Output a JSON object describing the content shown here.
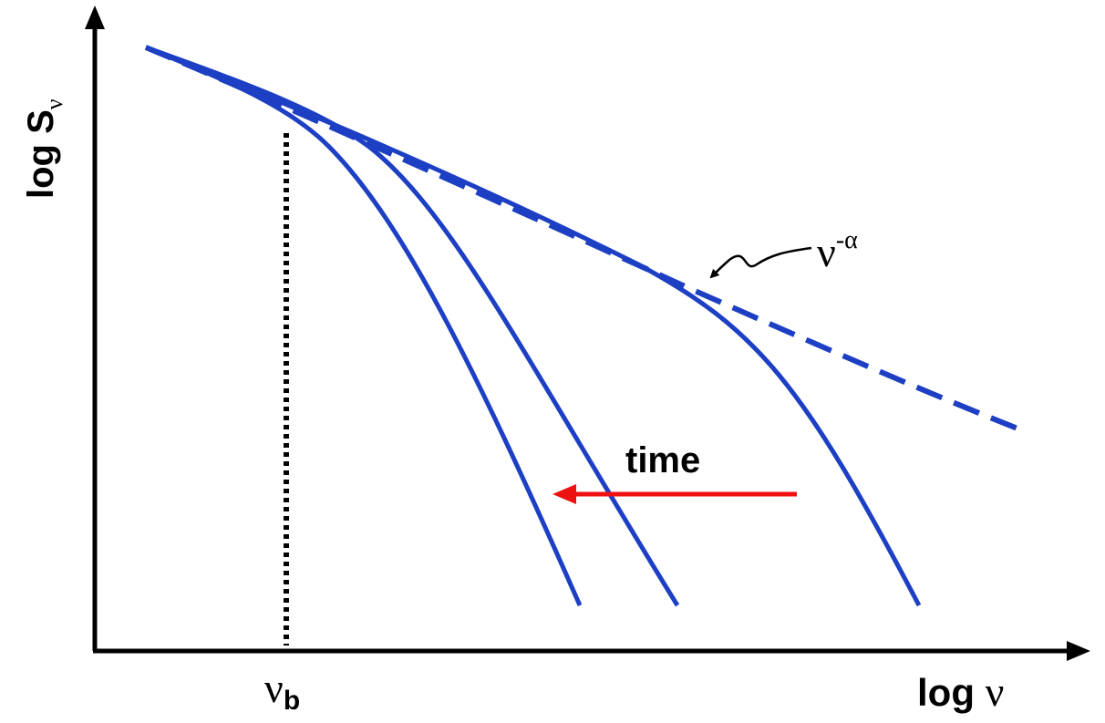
{
  "colors": {
    "axis": "#000000",
    "curve": "#1c3fc4",
    "time_arrow": "#ee1111",
    "break_marker": "#000000",
    "annotation": "#000000"
  },
  "labels": {
    "y_axis_log": "log S",
    "y_axis_sub": "ν",
    "x_axis_log": "log ",
    "x_axis_var": "ν",
    "break_var": "ν",
    "break_sub": "b",
    "powerlaw_base": "ν",
    "powerlaw_exp": "-α",
    "time": "time"
  }
}
